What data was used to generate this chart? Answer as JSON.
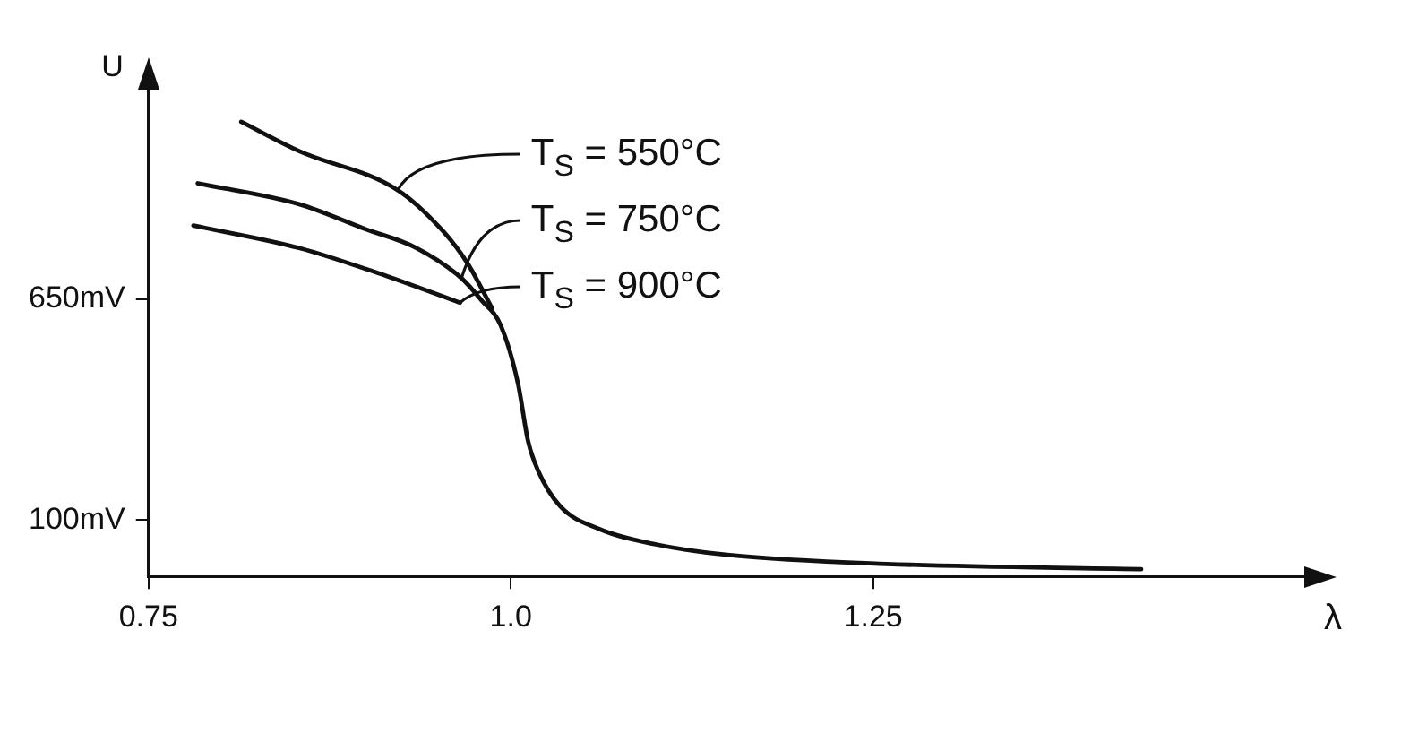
{
  "chart_data": {
    "type": "line",
    "xlabel": "λ",
    "ylabel": "U",
    "xlim": [
      0.75,
      1.55
    ],
    "xticks": [
      0.75,
      {
        "value": 1.0,
        "label": "1.0"
      },
      1.25
    ],
    "ylim": [
      -40,
      1180
    ],
    "yticks": [
      {
        "value": 650,
        "label": "650mV"
      },
      {
        "value": 100,
        "label": "100mV"
      }
    ],
    "grid": false,
    "legend": "top",
    "marker": "none",
    "line_style": "solid",
    "series": [
      {
        "name": "T$_{S}$ = 550°C",
        "color": "#111111",
        "x": [
          0.814,
          0.854,
          0.922,
          0.953,
          0.97,
          0.987
        ],
        "values": [
          1091,
          1018,
          921,
          820,
          740,
          628
        ]
      },
      {
        "name": "T$_{S}$ = 750°C",
        "color": "#111111",
        "x": [
          0.784,
          0.854,
          0.899,
          0.935,
          0.966,
          0.98,
          0.993,
          1.005,
          1.012,
          1.019,
          1.034,
          1.061,
          1.101,
          1.151,
          1.259,
          1.435
        ],
        "values": [
          938,
          886,
          825,
          777,
          702,
          646,
          585,
          440,
          296,
          222,
          135,
          78,
          39,
          13,
          -9,
          -22
        ]
      },
      {
        "name": "T$_{S}$ = 900°C",
        "color": "#111111",
        "x": [
          0.781,
          0.854,
          0.908,
          0.965
        ],
        "values": [
          833,
          777,
          715,
          641
        ]
      }
    ]
  }
}
